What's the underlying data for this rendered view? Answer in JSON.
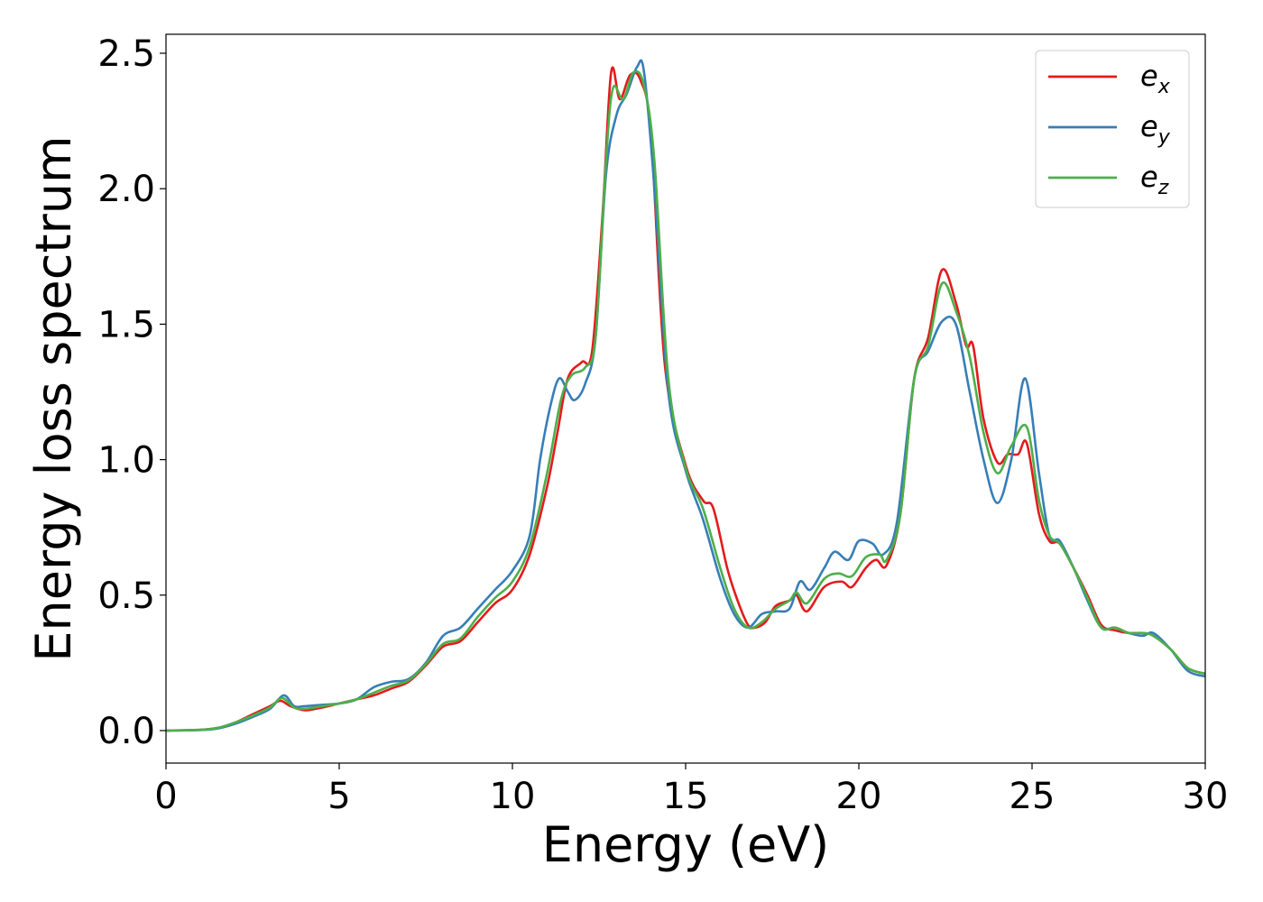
{
  "chart_data": {
    "type": "line",
    "title": "",
    "xlabel": "Energy (eV)",
    "ylabel": "Energy loss spectrum",
    "xlim": [
      0,
      30
    ],
    "ylim": [
      -0.12,
      2.57
    ],
    "xticks": [
      "0",
      "5",
      "10",
      "15",
      "20",
      "25",
      "30"
    ],
    "yticks": [
      "0.0",
      "0.5",
      "1.0",
      "1.5",
      "2.0",
      "2.5"
    ],
    "grid": false,
    "legend_position": "top-right",
    "series": [
      {
        "name": "e",
        "subscript": "x",
        "color": "#e41a1c",
        "points": [
          [
            0,
            0
          ],
          [
            1,
            0.003
          ],
          [
            1.5,
            0.01
          ],
          [
            2,
            0.03
          ],
          [
            2.5,
            0.06
          ],
          [
            3,
            0.09
          ],
          [
            3.3,
            0.11
          ],
          [
            3.6,
            0.09
          ],
          [
            4,
            0.075
          ],
          [
            4.5,
            0.085
          ],
          [
            5,
            0.1
          ],
          [
            5.5,
            0.115
          ],
          [
            6,
            0.13
          ],
          [
            6.5,
            0.155
          ],
          [
            7,
            0.18
          ],
          [
            7.5,
            0.24
          ],
          [
            8,
            0.31
          ],
          [
            8.5,
            0.33
          ],
          [
            9,
            0.4
          ],
          [
            9.5,
            0.47
          ],
          [
            10,
            0.52
          ],
          [
            10.5,
            0.65
          ],
          [
            11,
            0.9
          ],
          [
            11.3,
            1.1
          ],
          [
            11.6,
            1.3
          ],
          [
            12,
            1.36
          ],
          [
            12.3,
            1.4
          ],
          [
            12.6,
            1.9
          ],
          [
            12.85,
            2.43
          ],
          [
            13.1,
            2.33
          ],
          [
            13.4,
            2.42
          ],
          [
            13.7,
            2.4
          ],
          [
            14,
            2.2
          ],
          [
            14.4,
            1.35
          ],
          [
            15,
            0.98
          ],
          [
            15.5,
            0.85
          ],
          [
            15.8,
            0.82
          ],
          [
            16.2,
            0.6
          ],
          [
            16.5,
            0.48
          ],
          [
            16.8,
            0.39
          ],
          [
            17,
            0.38
          ],
          [
            17.3,
            0.4
          ],
          [
            17.6,
            0.46
          ],
          [
            18,
            0.48
          ],
          [
            18.2,
            0.5
          ],
          [
            18.5,
            0.44
          ],
          [
            19,
            0.53
          ],
          [
            19.5,
            0.55
          ],
          [
            19.8,
            0.53
          ],
          [
            20.2,
            0.6
          ],
          [
            20.5,
            0.63
          ],
          [
            20.8,
            0.61
          ],
          [
            21.2,
            0.8
          ],
          [
            21.6,
            1.3
          ],
          [
            22,
            1.45
          ],
          [
            22.4,
            1.7
          ],
          [
            22.8,
            1.58
          ],
          [
            23.1,
            1.42
          ],
          [
            23.3,
            1.42
          ],
          [
            23.6,
            1.15
          ],
          [
            24,
            0.99
          ],
          [
            24.3,
            1.02
          ],
          [
            24.6,
            1.02
          ],
          [
            24.85,
            1.06
          ],
          [
            25.2,
            0.8
          ],
          [
            25.5,
            0.7
          ],
          [
            25.8,
            0.69
          ],
          [
            26.2,
            0.6
          ],
          [
            26.6,
            0.5
          ],
          [
            27,
            0.39
          ],
          [
            27.4,
            0.37
          ],
          [
            27.8,
            0.36
          ],
          [
            28.2,
            0.36
          ],
          [
            28.5,
            0.35
          ],
          [
            29,
            0.3
          ],
          [
            29.5,
            0.23
          ],
          [
            30,
            0.21
          ]
        ]
      },
      {
        "name": "e",
        "subscript": "y",
        "color": "#377eb8",
        "points": [
          [
            0,
            0
          ],
          [
            1,
            0.002
          ],
          [
            1.5,
            0.008
          ],
          [
            2,
            0.025
          ],
          [
            2.5,
            0.05
          ],
          [
            3,
            0.08
          ],
          [
            3.4,
            0.13
          ],
          [
            3.7,
            0.09
          ],
          [
            4,
            0.09
          ],
          [
            4.5,
            0.095
          ],
          [
            5,
            0.1
          ],
          [
            5.5,
            0.115
          ],
          [
            6,
            0.16
          ],
          [
            6.5,
            0.18
          ],
          [
            7,
            0.19
          ],
          [
            7.5,
            0.25
          ],
          [
            8,
            0.35
          ],
          [
            8.5,
            0.38
          ],
          [
            9,
            0.45
          ],
          [
            9.5,
            0.52
          ],
          [
            10,
            0.59
          ],
          [
            10.5,
            0.72
          ],
          [
            10.8,
            1.0
          ],
          [
            11.1,
            1.2
          ],
          [
            11.35,
            1.3
          ],
          [
            11.6,
            1.25
          ],
          [
            11.8,
            1.22
          ],
          [
            12.1,
            1.28
          ],
          [
            12.4,
            1.45
          ],
          [
            12.7,
            2.05
          ],
          [
            13,
            2.27
          ],
          [
            13.3,
            2.35
          ],
          [
            13.6,
            2.45
          ],
          [
            13.8,
            2.43
          ],
          [
            14.1,
            2.0
          ],
          [
            14.5,
            1.25
          ],
          [
            15,
            0.96
          ],
          [
            15.5,
            0.78
          ],
          [
            16,
            0.56
          ],
          [
            16.4,
            0.43
          ],
          [
            16.8,
            0.38
          ],
          [
            17.2,
            0.43
          ],
          [
            17.6,
            0.44
          ],
          [
            18,
            0.45
          ],
          [
            18.3,
            0.55
          ],
          [
            18.6,
            0.52
          ],
          [
            19,
            0.6
          ],
          [
            19.3,
            0.66
          ],
          [
            19.7,
            0.63
          ],
          [
            20,
            0.7
          ],
          [
            20.4,
            0.69
          ],
          [
            20.7,
            0.65
          ],
          [
            21.1,
            0.77
          ],
          [
            21.6,
            1.3
          ],
          [
            22,
            1.4
          ],
          [
            22.4,
            1.51
          ],
          [
            22.8,
            1.5
          ],
          [
            23.2,
            1.25
          ],
          [
            23.6,
            1.0
          ],
          [
            24,
            0.84
          ],
          [
            24.4,
            1.0
          ],
          [
            24.8,
            1.3
          ],
          [
            25.2,
            0.95
          ],
          [
            25.5,
            0.72
          ],
          [
            25.8,
            0.7
          ],
          [
            26.2,
            0.6
          ],
          [
            26.6,
            0.48
          ],
          [
            27,
            0.38
          ],
          [
            27.4,
            0.38
          ],
          [
            27.8,
            0.36
          ],
          [
            28.2,
            0.35
          ],
          [
            28.5,
            0.36
          ],
          [
            29,
            0.3
          ],
          [
            29.5,
            0.22
          ],
          [
            30,
            0.2
          ]
        ]
      },
      {
        "name": "e",
        "subscript": "z",
        "color": "#4daf4a",
        "points": [
          [
            0,
            0
          ],
          [
            1,
            0.003
          ],
          [
            1.5,
            0.01
          ],
          [
            2,
            0.03
          ],
          [
            2.5,
            0.055
          ],
          [
            3,
            0.085
          ],
          [
            3.35,
            0.12
          ],
          [
            3.7,
            0.085
          ],
          [
            4,
            0.08
          ],
          [
            4.5,
            0.09
          ],
          [
            5,
            0.1
          ],
          [
            5.5,
            0.115
          ],
          [
            6,
            0.14
          ],
          [
            6.5,
            0.165
          ],
          [
            7,
            0.185
          ],
          [
            7.5,
            0.245
          ],
          [
            8,
            0.32
          ],
          [
            8.5,
            0.34
          ],
          [
            9,
            0.42
          ],
          [
            9.5,
            0.49
          ],
          [
            10,
            0.55
          ],
          [
            10.5,
            0.68
          ],
          [
            11,
            0.95
          ],
          [
            11.4,
            1.22
          ],
          [
            11.7,
            1.31
          ],
          [
            12.1,
            1.34
          ],
          [
            12.4,
            1.45
          ],
          [
            12.7,
            2.1
          ],
          [
            12.9,
            2.37
          ],
          [
            13.2,
            2.33
          ],
          [
            13.5,
            2.43
          ],
          [
            13.8,
            2.38
          ],
          [
            14.1,
            2.1
          ],
          [
            14.5,
            1.3
          ],
          [
            15,
            0.97
          ],
          [
            15.5,
            0.82
          ],
          [
            16,
            0.6
          ],
          [
            16.4,
            0.45
          ],
          [
            16.8,
            0.38
          ],
          [
            17.2,
            0.4
          ],
          [
            17.6,
            0.45
          ],
          [
            18,
            0.48
          ],
          [
            18.2,
            0.51
          ],
          [
            18.5,
            0.47
          ],
          [
            19,
            0.56
          ],
          [
            19.4,
            0.58
          ],
          [
            19.8,
            0.57
          ],
          [
            20.2,
            0.64
          ],
          [
            20.6,
            0.65
          ],
          [
            20.8,
            0.63
          ],
          [
            21.2,
            0.8
          ],
          [
            21.6,
            1.3
          ],
          [
            22,
            1.42
          ],
          [
            22.4,
            1.65
          ],
          [
            22.8,
            1.55
          ],
          [
            23.2,
            1.38
          ],
          [
            23.6,
            1.1
          ],
          [
            24,
            0.95
          ],
          [
            24.4,
            1.05
          ],
          [
            24.85,
            1.12
          ],
          [
            25.2,
            0.85
          ],
          [
            25.5,
            0.72
          ],
          [
            25.8,
            0.69
          ],
          [
            26.2,
            0.6
          ],
          [
            26.6,
            0.49
          ],
          [
            27,
            0.38
          ],
          [
            27.4,
            0.38
          ],
          [
            27.8,
            0.36
          ],
          [
            28.2,
            0.36
          ],
          [
            28.5,
            0.35
          ],
          [
            29,
            0.3
          ],
          [
            29.5,
            0.23
          ],
          [
            30,
            0.21
          ]
        ]
      }
    ]
  }
}
